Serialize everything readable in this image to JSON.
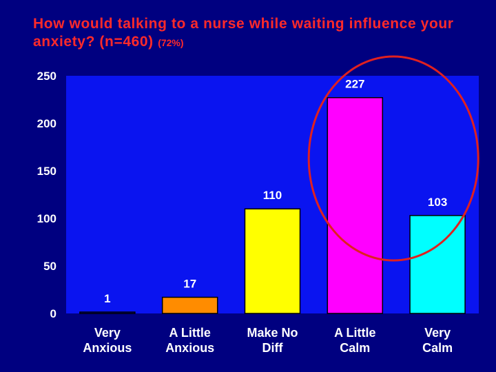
{
  "title": {
    "main": "How would talking to a nurse while waiting influence your anxiety? (n=460)",
    "sub": "(72%)"
  },
  "colors": {
    "background": "#000080",
    "plot_area": "#0a14f0",
    "title": "#ff2a2a",
    "highlight_ellipse": "#e02020"
  },
  "chart_data": {
    "type": "bar",
    "categories": [
      [
        "Very",
        "Anxious"
      ],
      [
        "A Little",
        "Anxious"
      ],
      [
        "Make No",
        "Diff"
      ],
      [
        "A Little",
        "Calm"
      ],
      [
        "Very",
        "Calm"
      ]
    ],
    "values": [
      1,
      17,
      110,
      227,
      103
    ],
    "data_labels": [
      "1",
      "17",
      "110",
      "227",
      "103"
    ],
    "bar_colors": [
      "#0000b4",
      "#ff8c00",
      "#ffff00",
      "#ff00ff",
      "#00ffff"
    ],
    "ylim": [
      0,
      250
    ],
    "yticks": [
      0,
      50,
      100,
      150,
      200,
      250
    ],
    "grid": false,
    "legend": "none",
    "annotation": "ellipse highlighting A Little Calm and Very Calm"
  }
}
